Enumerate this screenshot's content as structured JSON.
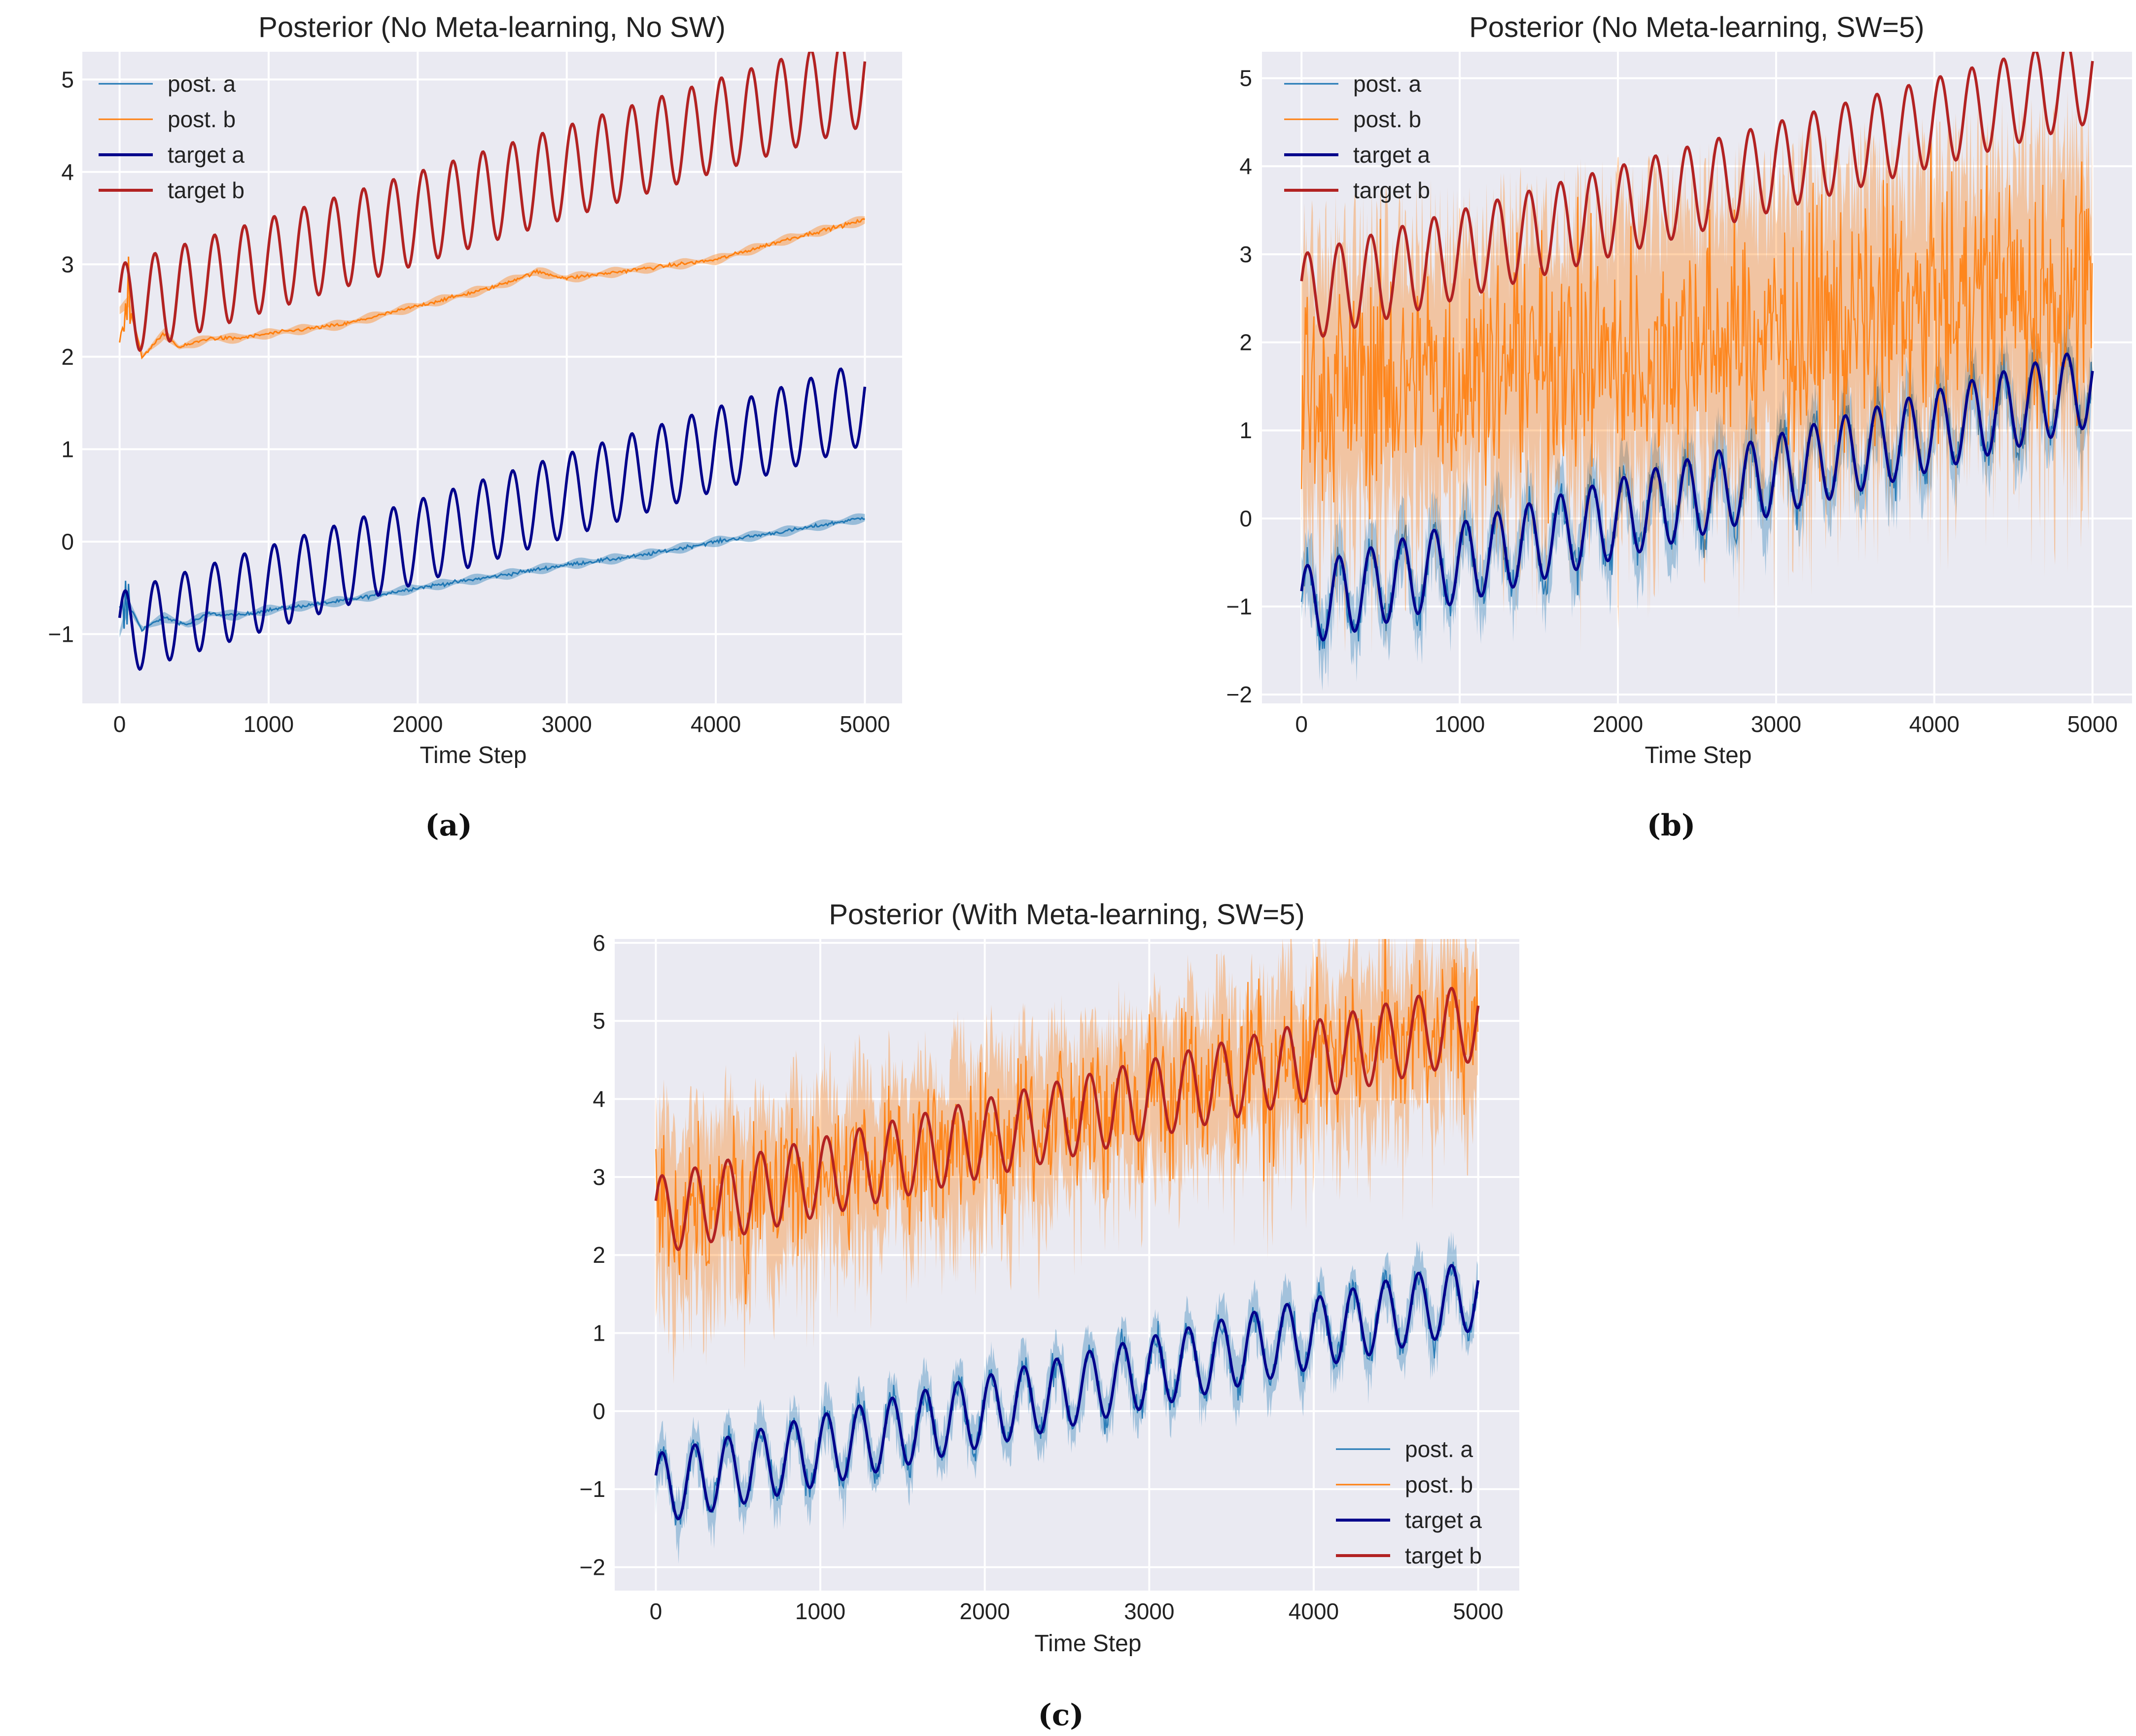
{
  "chart_data": [
    {
      "type": "line",
      "panel_label": "(a)",
      "title": "Posterior (No Meta-learning, No SW)",
      "xlabel": "Time Step",
      "ylabel": "",
      "xlim": [
        -250,
        5250
      ],
      "ylim": [
        -1.75,
        5.3
      ],
      "xticks": [
        0,
        1000,
        2000,
        3000,
        4000,
        5000
      ],
      "yticks": [
        -1,
        0,
        1,
        2,
        3,
        4,
        5
      ],
      "grid": true,
      "legend_position": "top-left",
      "series": [
        {
          "key": "post_a",
          "name": "post. a",
          "color": "#1f77b4",
          "style": "smooth",
          "points": [
            [
              0,
              -1.0
            ],
            [
              60,
              -0.68
            ],
            [
              150,
              -0.95
            ],
            [
              300,
              -0.82
            ],
            [
              450,
              -0.9
            ],
            [
              600,
              -0.78
            ],
            [
              800,
              -0.8
            ],
            [
              1000,
              -0.74
            ],
            [
              1500,
              -0.64
            ],
            [
              2000,
              -0.5
            ],
            [
              2500,
              -0.38
            ],
            [
              3000,
              -0.25
            ],
            [
              3500,
              -0.15
            ],
            [
              4000,
              0.0
            ],
            [
              4500,
              0.12
            ],
            [
              5000,
              0.26
            ]
          ]
        },
        {
          "key": "post_b",
          "name": "post. b",
          "color": "#ff7f0e",
          "style": "smooth",
          "points": [
            [
              0,
              2.5
            ],
            [
              60,
              2.6
            ],
            [
              150,
              2.0
            ],
            [
              300,
              2.25
            ],
            [
              400,
              2.1
            ],
            [
              600,
              2.2
            ],
            [
              800,
              2.2
            ],
            [
              1000,
              2.25
            ],
            [
              1500,
              2.35
            ],
            [
              2000,
              2.55
            ],
            [
              2500,
              2.75
            ],
            [
              2800,
              2.92
            ],
            [
              3000,
              2.85
            ],
            [
              3500,
              2.95
            ],
            [
              4000,
              3.05
            ],
            [
              4500,
              3.28
            ],
            [
              5000,
              3.48
            ]
          ]
        },
        {
          "key": "target_a",
          "name": "target a",
          "color": "#00008b",
          "style": "target",
          "offset": -1.0,
          "slope": 0.0005,
          "amp": 0.45,
          "period": 200
        },
        {
          "key": "target_b",
          "name": "target b",
          "color": "#b22222",
          "style": "target",
          "offset": 2.5,
          "slope": 0.0005,
          "amp": 0.5,
          "period": 200
        }
      ]
    },
    {
      "type": "line",
      "panel_label": "(b)",
      "title": "Posterior (No Meta-learning, SW=5)",
      "xlabel": "Time Step",
      "ylabel": "",
      "xlim": [
        -250,
        5250
      ],
      "ylim": [
        -2.1,
        5.3
      ],
      "xticks": [
        0,
        1000,
        2000,
        3000,
        4000,
        5000
      ],
      "yticks": [
        -2,
        -1,
        0,
        1,
        2,
        3,
        4,
        5
      ],
      "grid": true,
      "legend_position": "top-left",
      "series": [
        {
          "key": "post_a",
          "name": "post. a",
          "color": "#1f77b4",
          "style": "noisy",
          "offset": -1.0,
          "slope": 0.0005,
          "amp": 0.45,
          "period": 200,
          "noise": 0.12,
          "band": 0.35
        },
        {
          "key": "post_b",
          "name": "post. b",
          "color": "#ff7f0e",
          "style": "noisy",
          "offset": 1.4,
          "slope": 0.00025,
          "amp": 0.0,
          "period": 200,
          "noise": 0.7,
          "band": 1.5
        },
        {
          "key": "target_a",
          "name": "target a",
          "color": "#00008b",
          "style": "target",
          "offset": -1.0,
          "slope": 0.0005,
          "amp": 0.45,
          "period": 200
        },
        {
          "key": "target_b",
          "name": "target b",
          "color": "#b22222",
          "style": "target",
          "offset": 2.5,
          "slope": 0.0005,
          "amp": 0.5,
          "period": 200
        }
      ]
    },
    {
      "type": "line",
      "panel_label": "(c)",
      "title": "Posterior (With Meta-learning, SW=5)",
      "xlabel": "Time Step",
      "ylabel": "",
      "xlim": [
        -250,
        5250
      ],
      "ylim": [
        -2.3,
        6.05
      ],
      "xticks": [
        0,
        1000,
        2000,
        3000,
        4000,
        5000
      ],
      "yticks": [
        -2,
        -1,
        0,
        1,
        2,
        3,
        4,
        5,
        6
      ],
      "grid": true,
      "legend_position": "bottom-right",
      "series": [
        {
          "key": "post_a",
          "name": "post. a",
          "color": "#1f77b4",
          "style": "noisy",
          "offset": -1.0,
          "slope": 0.0005,
          "amp": 0.45,
          "period": 200,
          "noise": 0.1,
          "band": 0.3
        },
        {
          "key": "post_b",
          "name": "post. b",
          "color": "#ff7f0e",
          "style": "noisy",
          "offset": 2.5,
          "slope": 0.0005,
          "amp": 0.25,
          "period": 200,
          "noise": 0.45,
          "band": 1.0
        },
        {
          "key": "target_a",
          "name": "target a",
          "color": "#00008b",
          "style": "target",
          "offset": -1.0,
          "slope": 0.0005,
          "amp": 0.45,
          "period": 200
        },
        {
          "key": "target_b",
          "name": "target b",
          "color": "#b22222",
          "style": "target",
          "offset": 2.5,
          "slope": 0.0005,
          "amp": 0.5,
          "period": 200
        }
      ]
    }
  ],
  "colors": {
    "plot_background": "#eaeaf2",
    "grid": "#ffffff",
    "text": "#222222"
  }
}
